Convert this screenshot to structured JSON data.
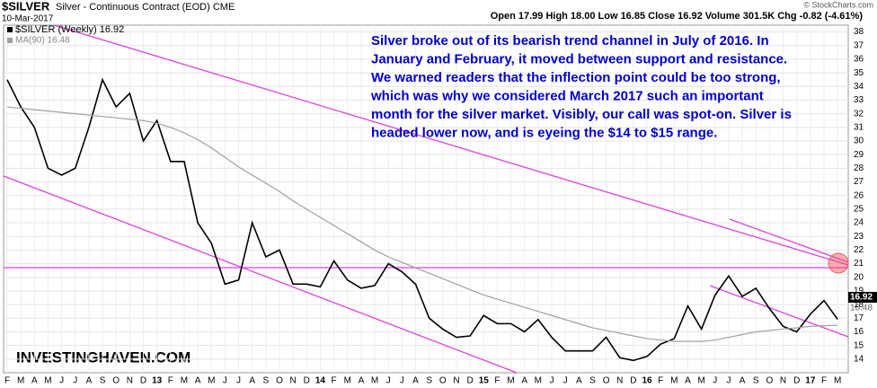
{
  "chart_data": {
    "type": "line",
    "title": "$SILVER",
    "subtitle": "Silver - Continuous Contract (EOD) CME",
    "date": "10-Mar-2017",
    "quote": "Open 17.99 High 18.00 Low 16.85 Close 16.92 Volume 301.5K Chg -0.82 (-4.61%)",
    "credit": "© StockCharts.com",
    "watermark": "INVESTINGHAVEN.COM",
    "last_price_tag": "16.92",
    "last_ma_tag": "16.48",
    "annotation": [
      "Silver broke out of its bearish trend channel in July of 2016. In",
      "January and February, it moved between support and resistance.",
      "We warned readers that the inflection point could be too strong,",
      "which was why we considered March 2017 such an important",
      "month for the silver market. Visibly, our call was spot-on. Silver is",
      "headed lower now, and is eyeing the $14 to $15 range."
    ],
    "categories": [
      "F",
      "M",
      "A",
      "M",
      "J",
      "J",
      "A",
      "S",
      "O",
      "N",
      "D",
      "13",
      "F",
      "M",
      "A",
      "M",
      "J",
      "J",
      "A",
      "S",
      "O",
      "N",
      "D",
      "14",
      "F",
      "M",
      "A",
      "M",
      "J",
      "J",
      "A",
      "S",
      "O",
      "N",
      "D",
      "15",
      "F",
      "M",
      "A",
      "M",
      "J",
      "J",
      "A",
      "S",
      "O",
      "N",
      "D",
      "16",
      "F",
      "M",
      "A",
      "M",
      "J",
      "J",
      "A",
      "S",
      "O",
      "N",
      "D",
      "17",
      "F",
      "M"
    ],
    "series": [
      {
        "name": "$SILVER (Weekly) 16.92",
        "color": "#000000",
        "values": [
          34.5,
          32.5,
          31,
          28,
          27.5,
          28,
          31,
          34.5,
          32.5,
          33.5,
          30,
          31.5,
          28.5,
          28.5,
          24,
          22.5,
          19.5,
          19.8,
          24,
          21.5,
          22,
          19.5,
          19.5,
          19.3,
          21.2,
          19.8,
          19.2,
          19.4,
          21,
          20.4,
          19.5,
          17,
          16.2,
          15.6,
          15.7,
          17.2,
          16.6,
          16.6,
          16,
          16.9,
          15.6,
          14.6,
          14.6,
          14.6,
          15.6,
          14.1,
          13.9,
          14.2,
          15.1,
          15.5,
          17.9,
          16.2,
          18.7,
          20.1,
          18.6,
          19.2,
          17.7,
          16.4,
          16,
          17.3,
          18.3,
          16.92
        ]
      },
      {
        "name": "MA(90) 16.48",
        "color": "#a0a0a0",
        "values": [
          32.5,
          32.4,
          32.3,
          32.2,
          32.1,
          32,
          31.9,
          31.8,
          31.7,
          31.6,
          31.5,
          31.3,
          31,
          30.6,
          30.1,
          29.5,
          28.8,
          28.1,
          27.5,
          26.9,
          26.3,
          25.6,
          25,
          24.4,
          23.8,
          23.2,
          22.6,
          22,
          21.5,
          21.1,
          20.7,
          20.3,
          19.9,
          19.5,
          19.1,
          18.7,
          18.4,
          18.1,
          17.8,
          17.5,
          17.2,
          16.9,
          16.6,
          16.3,
          16.1,
          15.9,
          15.7,
          15.5,
          15.4,
          15.3,
          15.3,
          15.3,
          15.4,
          15.6,
          15.8,
          16,
          16.1,
          16.2,
          16.3,
          16.4,
          16.45,
          16.48
        ]
      }
    ],
    "ylim": [
      13,
      38.5
    ],
    "yticks": [
      14,
      15,
      16,
      17,
      18,
      19,
      20,
      21,
      22,
      23,
      24,
      25,
      26,
      27,
      28,
      29,
      30,
      31,
      32,
      33,
      34,
      35,
      36,
      37,
      38
    ],
    "grid": true
  }
}
